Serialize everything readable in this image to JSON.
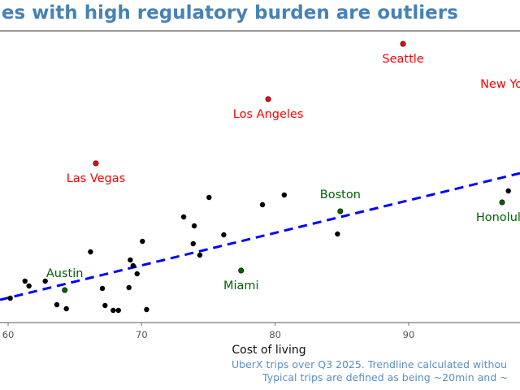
{
  "chart_data": {
    "type": "scatter",
    "title": "ies with high regulatory burden are outliers",
    "xlabel": "Cost of living",
    "ylabel": "",
    "xlim": [
      59.39,
      98.34
    ],
    "ylim": [
      0,
      36
    ],
    "xticks": [
      60,
      70,
      80,
      90
    ],
    "grid": false,
    "colors": {
      "title": "#4682b4",
      "typical": "#000000",
      "low": "#006400",
      "high": "#ff0000",
      "trend": "#0000ff",
      "footnote": "#5a8fc5"
    },
    "points": [
      [
        60.16,
        3.0
      ],
      [
        61.26,
        5.1
      ],
      [
        61.56,
        4.5
      ],
      [
        62.78,
        5.1
      ],
      [
        63.65,
        2.2
      ],
      [
        64.36,
        1.7
      ],
      [
        66.17,
        8.7
      ],
      [
        67.06,
        4.2
      ],
      [
        67.26,
        2.1
      ],
      [
        67.87,
        1.5
      ],
      [
        68.26,
        1.5
      ],
      [
        69.05,
        4.3
      ],
      [
        69.15,
        7.7
      ],
      [
        69.36,
        7.0
      ],
      [
        69.66,
        6.0
      ],
      [
        70.06,
        10.0
      ],
      [
        70.37,
        1.6
      ],
      [
        73.15,
        13.0
      ],
      [
        73.86,
        9.7
      ],
      [
        73.94,
        11.9
      ],
      [
        74.36,
        8.3
      ],
      [
        75.05,
        15.4
      ],
      [
        76.15,
        10.8
      ],
      [
        79.05,
        14.5
      ],
      [
        80.68,
        15.7
      ],
      [
        84.67,
        10.9
      ],
      [
        97.47,
        16.2
      ]
    ],
    "labeled_points": [
      {
        "name": "Austin",
        "x": 64.24,
        "y": 4.0,
        "group": "low",
        "label_pos": "above"
      },
      {
        "name": "Miami",
        "x": 77.45,
        "y": 6.4,
        "group": "low",
        "label_pos": "below"
      },
      {
        "name": "Boston",
        "x": 84.88,
        "y": 13.7,
        "group": "low",
        "label_pos": "above"
      },
      {
        "name": "Honolulu",
        "x": 97.0,
        "y": 14.8,
        "group": "low",
        "label_pos": "below"
      },
      {
        "name": "Seattle",
        "x": 89.58,
        "y": 34.3,
        "group": "high",
        "label_pos": "below"
      },
      {
        "name": "Los Angeles",
        "x": 79.48,
        "y": 27.5,
        "group": "high",
        "label_pos": "below"
      },
      {
        "name": "Las Vegas",
        "x": 66.57,
        "y": 19.6,
        "group": "high",
        "label_pos": "below"
      },
      {
        "name": "New York",
        "x": 100.5,
        "y": 31.2,
        "group": "high",
        "label_pos": "below-left"
      }
    ],
    "trendline": {
      "slope": 0.4,
      "intercept_at_x60": 3.04,
      "style": "dashed"
    },
    "footnote": [
      "UberX trips over Q3 2025. Trendline calculated withou",
      "Typical trips are defined as being ~20min and ~"
    ]
  }
}
